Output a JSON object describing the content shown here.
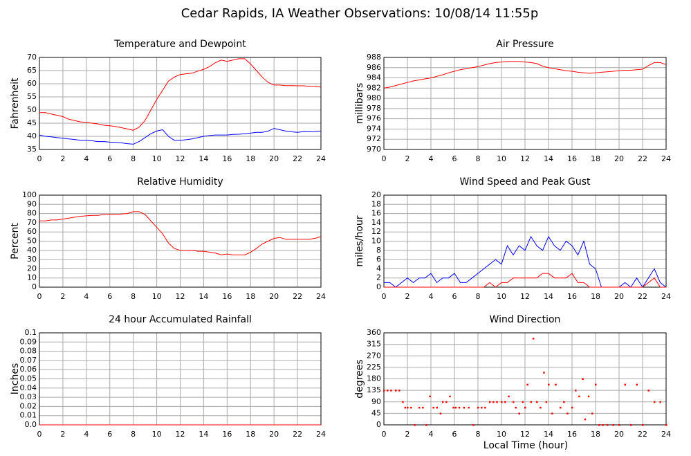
{
  "title": "Cedar Rapids, IA Weather Observations: 10/08/14 11:55p",
  "xlabel": "Local Time (hour)",
  "chart_data": [
    {
      "type": "line",
      "title": "Temperature and Dewpoint",
      "ylabel": "Fahrenheit",
      "xlim": [
        0,
        24
      ],
      "xticks": [
        0,
        2,
        4,
        6,
        8,
        10,
        12,
        14,
        16,
        18,
        20,
        22,
        24
      ],
      "ylim": [
        35,
        70
      ],
      "yticks": [
        35,
        40,
        45,
        50,
        55,
        60,
        65,
        70
      ],
      "grid": true,
      "x": [
        0,
        0.5,
        1,
        1.5,
        2,
        2.5,
        3,
        3.5,
        4,
        4.5,
        5,
        5.5,
        6,
        6.5,
        7,
        7.5,
        8,
        8.5,
        9,
        9.5,
        10,
        10.5,
        11,
        11.5,
        12,
        12.5,
        13,
        13.5,
        14,
        14.5,
        15,
        15.5,
        16,
        16.5,
        17,
        17.5,
        18,
        18.5,
        19,
        19.5,
        20,
        20.5,
        21,
        21.5,
        22,
        22.5,
        23,
        23.5,
        24
      ],
      "series": [
        {
          "color": "#ff0000",
          "values": [
            49,
            49,
            48.5,
            48,
            47.5,
            46.5,
            46,
            45.5,
            45.3,
            45,
            44.7,
            44.2,
            44,
            43.7,
            43.3,
            42.8,
            42.3,
            43.5,
            46,
            50,
            54,
            57.5,
            61,
            62.5,
            63.5,
            63.8,
            64,
            64.8,
            65.5,
            66.5,
            68,
            69,
            68.5,
            69,
            69.5,
            69.5,
            67.5,
            65,
            62.5,
            60.5,
            59.5,
            59.5,
            59.3,
            59.3,
            59.2,
            59.2,
            59,
            59,
            58.7
          ]
        },
        {
          "color": "#0000ff",
          "values": [
            40.5,
            40,
            39.8,
            39.5,
            39.3,
            39,
            38.8,
            38.5,
            38.5,
            38.3,
            38,
            38,
            37.8,
            37.7,
            37.5,
            37.2,
            37,
            38,
            39.5,
            41,
            42,
            42.5,
            40,
            38.5,
            38.5,
            38.7,
            39,
            39.5,
            40,
            40.3,
            40.5,
            40.5,
            40.5,
            40.7,
            40.8,
            41,
            41.2,
            41.5,
            41.5,
            42,
            43,
            42.5,
            42,
            41.7,
            41.5,
            41.8,
            41.7,
            41.8,
            42
          ]
        }
      ]
    },
    {
      "type": "line",
      "title": "Air Pressure",
      "ylabel": "millibars",
      "xlim": [
        0,
        24
      ],
      "xticks": [
        0,
        2,
        4,
        6,
        8,
        10,
        12,
        14,
        16,
        18,
        20,
        22,
        24
      ],
      "ylim": [
        970,
        988
      ],
      "yticks": [
        970,
        972,
        974,
        976,
        978,
        980,
        982,
        984,
        986,
        988
      ],
      "grid": true,
      "x": [
        0,
        0.5,
        1,
        1.5,
        2,
        2.5,
        3,
        3.5,
        4,
        4.5,
        5,
        5.5,
        6,
        6.5,
        7,
        7.5,
        8,
        8.5,
        9,
        9.5,
        10,
        10.5,
        11,
        11.5,
        12,
        12.5,
        13,
        13.5,
        14,
        14.5,
        15,
        15.5,
        16,
        16.5,
        17,
        17.5,
        18,
        18.5,
        19,
        19.5,
        20,
        20.5,
        21,
        21.5,
        22,
        22.5,
        23,
        23.5,
        24
      ],
      "series": [
        {
          "color": "#ff0000",
          "values": [
            982,
            982.2,
            982.5,
            982.8,
            983.1,
            983.4,
            983.6,
            983.8,
            984,
            984.3,
            984.6,
            985,
            985.3,
            985.6,
            985.8,
            986,
            986.2,
            986.5,
            986.8,
            987,
            987.1,
            987.2,
            987.2,
            987.2,
            987.1,
            987,
            986.8,
            986.3,
            986,
            985.8,
            985.6,
            985.4,
            985.3,
            985.1,
            985,
            984.9,
            985,
            985.1,
            985.2,
            985.3,
            985.4,
            985.5,
            985.5,
            985.6,
            985.7,
            986.4,
            987,
            987,
            986.6
          ]
        }
      ]
    },
    {
      "type": "line",
      "title": "Relative Humidity",
      "ylabel": "Percent",
      "xlim": [
        0,
        24
      ],
      "xticks": [
        0,
        2,
        4,
        6,
        8,
        10,
        12,
        14,
        16,
        18,
        20,
        22,
        24
      ],
      "ylim": [
        0,
        100
      ],
      "yticks": [
        0,
        10,
        20,
        30,
        40,
        50,
        60,
        70,
        80,
        90,
        100
      ],
      "grid": true,
      "x": [
        0,
        0.5,
        1,
        1.5,
        2,
        2.5,
        3,
        3.5,
        4,
        4.5,
        5,
        5.5,
        6,
        6.5,
        7,
        7.5,
        8,
        8.5,
        9,
        9.5,
        10,
        10.5,
        11,
        11.5,
        12,
        12.5,
        13,
        13.5,
        14,
        14.5,
        15,
        15.5,
        16,
        16.5,
        17,
        17.5,
        18,
        18.5,
        19,
        19.5,
        20,
        20.5,
        21,
        21.5,
        22,
        22.5,
        23,
        23.5,
        24
      ],
      "series": [
        {
          "color": "#ff0000",
          "values": [
            72,
            72,
            73,
            73,
            74,
            75,
            76,
            77,
            77.5,
            78,
            78,
            79,
            79,
            79,
            79.5,
            80,
            82,
            82,
            79,
            72,
            65,
            58,
            48,
            42,
            40,
            40,
            40,
            39,
            39,
            38,
            37,
            35,
            36,
            35,
            35,
            35,
            38,
            42,
            47,
            50,
            53,
            54,
            52,
            52,
            52,
            52,
            52,
            53,
            55
          ]
        }
      ]
    },
    {
      "type": "line",
      "title": "Wind Speed and Peak Gust",
      "ylabel": "miles/hour",
      "xlim": [
        0,
        24
      ],
      "xticks": [
        0,
        2,
        4,
        6,
        8,
        10,
        12,
        14,
        16,
        18,
        20,
        22,
        24
      ],
      "ylim": [
        0,
        20
      ],
      "yticks": [
        0,
        2,
        4,
        6,
        8,
        10,
        12,
        14,
        16,
        18,
        20
      ],
      "grid": true,
      "x": [
        0,
        0.5,
        1,
        1.5,
        2,
        2.5,
        3,
        3.5,
        4,
        4.5,
        5,
        5.5,
        6,
        6.5,
        7,
        7.5,
        8,
        8.5,
        9,
        9.5,
        10,
        10.5,
        11,
        11.5,
        12,
        12.5,
        13,
        13.5,
        14,
        14.5,
        15,
        15.5,
        16,
        16.5,
        17,
        17.5,
        18,
        18.5,
        19,
        19.5,
        20,
        20.5,
        21,
        21.5,
        22,
        22.5,
        23,
        23.5,
        24
      ],
      "series": [
        {
          "color": "#0000ff",
          "values": [
            1,
            1,
            0,
            1,
            2,
            1,
            2,
            2,
            3,
            1,
            2,
            2,
            3,
            1,
            1,
            2,
            3,
            4,
            5,
            6,
            5,
            9,
            7,
            9,
            8,
            11,
            9,
            8,
            11,
            9,
            8,
            10,
            9,
            7,
            10,
            5,
            4,
            0,
            0,
            0,
            0,
            1,
            0,
            2,
            0,
            2,
            4,
            1,
            0
          ]
        },
        {
          "color": "#ff0000",
          "values": [
            0,
            0,
            0,
            0,
            0,
            0,
            0,
            0,
            0,
            0,
            0,
            0,
            0,
            0,
            0,
            0,
            0,
            0,
            1,
            0,
            1,
            1,
            2,
            2,
            2,
            2,
            2,
            3,
            3,
            2,
            2,
            2,
            3,
            1,
            1,
            0,
            0,
            0,
            0,
            0,
            0,
            0,
            0,
            0,
            0,
            1,
            2,
            0,
            0
          ]
        }
      ]
    },
    {
      "type": "line",
      "title": "24 hour Accumulated Rainfall",
      "ylabel": "Inches",
      "xlim": [
        0,
        24
      ],
      "xticks": [
        0,
        2,
        4,
        6,
        8,
        10,
        12,
        14,
        16,
        18,
        20,
        22,
        24
      ],
      "ylim": [
        0,
        0.1
      ],
      "yticks": [
        {
          "value": 0,
          "label": "0.0"
        },
        0.01,
        0.02,
        0.03,
        0.04,
        0.05,
        0.06,
        0.07,
        0.08,
        0.09,
        0.1
      ],
      "grid": true,
      "x": [
        0,
        24
      ],
      "series": [
        {
          "color": "#ff0000",
          "values": [
            0,
            0
          ]
        }
      ]
    },
    {
      "type": "scatter",
      "title": "Wind Direction",
      "ylabel": "degrees",
      "xlim": [
        0,
        24
      ],
      "xticks": [
        0,
        2,
        4,
        6,
        8,
        10,
        12,
        14,
        16,
        18,
        20,
        22,
        24
      ],
      "ylim": [
        0,
        360
      ],
      "yticks": [
        0,
        45,
        90,
        135,
        180,
        225,
        270,
        315,
        360
      ],
      "grid": true,
      "x": [
        0,
        0.3,
        0.6,
        1,
        1.3,
        1.6,
        1.8,
        2,
        2.3,
        2.6,
        3,
        3.3,
        3.6,
        3.9,
        4.2,
        4.5,
        4.8,
        5,
        5.3,
        5.6,
        5.9,
        6.1,
        6.4,
        6.8,
        7.2,
        7.6,
        8,
        8.3,
        8.6,
        9,
        9.3,
        9.6,
        10,
        10.3,
        10.6,
        11,
        11.2,
        11.5,
        11.8,
        12,
        12.2,
        12.5,
        12.7,
        13,
        13.3,
        13.6,
        13.8,
        14,
        14.3,
        14.6,
        15,
        15.3,
        15.6,
        16,
        16.3,
        16.6,
        16.9,
        17.1,
        17.4,
        17.7,
        18,
        18.3,
        18.6,
        19,
        19.5,
        20,
        20.5,
        21,
        21.5,
        22,
        22.5,
        23,
        23.5,
        24
      ],
      "series": [
        {
          "color": "#ff0000",
          "values": [
            135,
            135,
            135,
            135,
            135,
            90,
            68,
            68,
            68,
            0,
            68,
            68,
            0,
            112,
            68,
            68,
            45,
            90,
            90,
            112,
            68,
            68,
            68,
            68,
            68,
            0,
            68,
            68,
            68,
            90,
            90,
            90,
            90,
            90,
            112,
            90,
            68,
            45,
            90,
            68,
            158,
            90,
            338,
            90,
            68,
            205,
            90,
            158,
            45,
            158,
            68,
            90,
            45,
            68,
            135,
            112,
            180,
            22,
            112,
            45,
            158,
            0,
            0,
            0,
            0,
            0,
            158,
            0,
            158,
            0,
            135,
            90,
            90,
            0
          ]
        }
      ]
    }
  ]
}
